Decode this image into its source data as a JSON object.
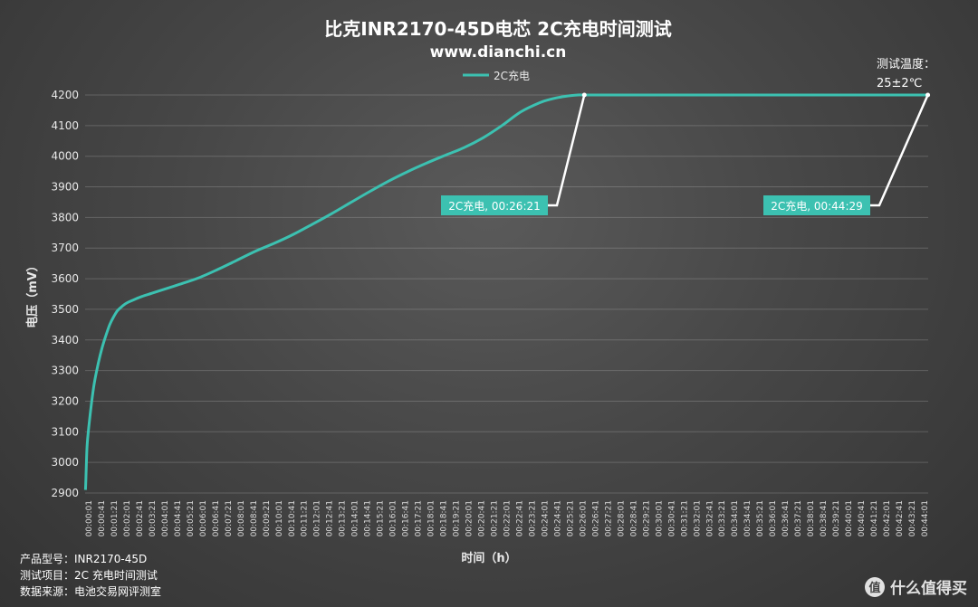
{
  "chart_data": {
    "type": "line",
    "title": "比克INR2170-45D电芯 2C充电时间测试",
    "subtitle": "www.dianchi.cn",
    "xlabel": "时间（h）",
    "ylabel": "电压（mV）",
    "ylim": [
      2900,
      4200
    ],
    "yticks": [
      "2900",
      "3000",
      "3100",
      "3200",
      "3300",
      "3400",
      "3500",
      "3600",
      "3700",
      "3800",
      "3900",
      "4000",
      "4100",
      "4200"
    ],
    "xticks": [
      "00:00:01",
      "00:00:41",
      "00:01:21",
      "00:02:01",
      "00:02:41",
      "00:03:21",
      "00:04:01",
      "00:04:41",
      "00:05:21",
      "00:06:01",
      "00:06:41",
      "00:07:21",
      "00:08:01",
      "00:08:41",
      "00:09:21",
      "00:10:01",
      "00:10:41",
      "00:11:21",
      "00:12:01",
      "00:12:41",
      "00:13:21",
      "00:14:01",
      "00:14:41",
      "00:15:21",
      "00:16:01",
      "00:16:41",
      "00:17:21",
      "00:18:01",
      "00:18:41",
      "00:19:21",
      "00:20:01",
      "00:20:41",
      "00:21:21",
      "00:22:01",
      "00:22:41",
      "00:23:21",
      "00:24:01",
      "00:24:41",
      "00:25:21",
      "00:26:01",
      "00:26:41",
      "00:27:21",
      "00:28:01",
      "00:28:41",
      "00:29:21",
      "00:30:01",
      "00:30:41",
      "00:31:21",
      "00:32:01",
      "00:32:41",
      "00:33:21",
      "00:34:01",
      "00:34:41",
      "00:35:21",
      "00:36:01",
      "00:36:41",
      "00:37:21",
      "00:38:01",
      "00:38:41",
      "00:39:21",
      "00:40:01",
      "00:40:41",
      "00:41:21",
      "00:42:01",
      "00:42:41",
      "00:43:21",
      "00:44:01"
    ],
    "grid": true,
    "legend_position": "top-center",
    "series": [
      {
        "name": "2C充电",
        "color": "#3cc1b1",
        "x_minutes": [
          0.02,
          0.05,
          0.1,
          0.2,
          0.35,
          0.5,
          0.7,
          0.9,
          1.1,
          1.3,
          1.5,
          1.7,
          1.9,
          2.1,
          2.3,
          2.6,
          3.0,
          3.5,
          4.0,
          5.0,
          6.0,
          7.0,
          8.0,
          9.0,
          10.0,
          11.0,
          12.0,
          13.0,
          14.0,
          15.0,
          16.0,
          17.0,
          18.0,
          19.0,
          20.0,
          21.0,
          22.0,
          23.0,
          24.0,
          24.5,
          25.0,
          25.5,
          26.0,
          26.35,
          27,
          30,
          35,
          40,
          44.48
        ],
        "values": [
          2910,
          2960,
          3050,
          3120,
          3200,
          3265,
          3325,
          3375,
          3415,
          3450,
          3475,
          3495,
          3507,
          3517,
          3524,
          3532,
          3542,
          3552,
          3562,
          3582,
          3603,
          3630,
          3660,
          3690,
          3716,
          3745,
          3778,
          3812,
          3848,
          3884,
          3918,
          3949,
          3977,
          4003,
          4028,
          4060,
          4100,
          4145,
          4175,
          4185,
          4192,
          4197,
          4200,
          4200,
          4200,
          4200,
          4200,
          4200,
          4200
        ]
      }
    ],
    "annotations": [
      {
        "label": "2C充电, 00:26:21"
      },
      {
        "label": "2C充电, 00:44:29"
      }
    ],
    "note": [
      "测试温度：",
      "25±2℃"
    ]
  },
  "footer": {
    "model": "产品型号：INR2170-45D",
    "project": "测试项目：2C 充电时间测试",
    "source": "数据来源：电池交易网评测室"
  },
  "watermark": {
    "badge": "值",
    "text": "什么值得买"
  }
}
